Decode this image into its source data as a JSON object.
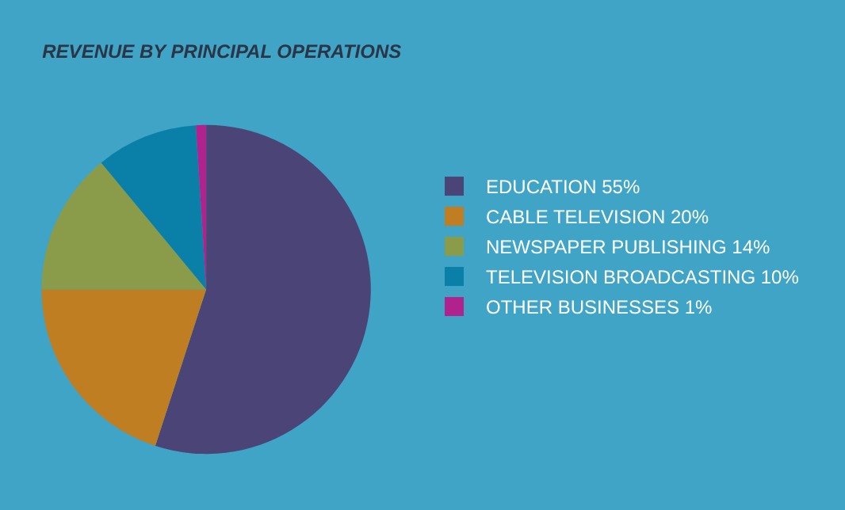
{
  "chart_data": {
    "type": "pie",
    "title": "REVENUE BY PRINCIPAL OPERATIONS",
    "categories": [
      "EDUCATION",
      "CABLE TELEVISION",
      "NEWSPAPER PUBLISHING",
      "TELEVISION BROADCASTING",
      "OTHER BUSINESSES"
    ],
    "values": [
      55,
      20,
      14,
      10,
      1
    ],
    "value_labels": [
      "55%",
      "20%",
      "14%",
      "10%",
      "1%"
    ],
    "colors": [
      "#4b4577",
      "#c07e22",
      "#8a9c4a",
      "#0a7fa8",
      "#b0238f"
    ],
    "legend": "right"
  }
}
